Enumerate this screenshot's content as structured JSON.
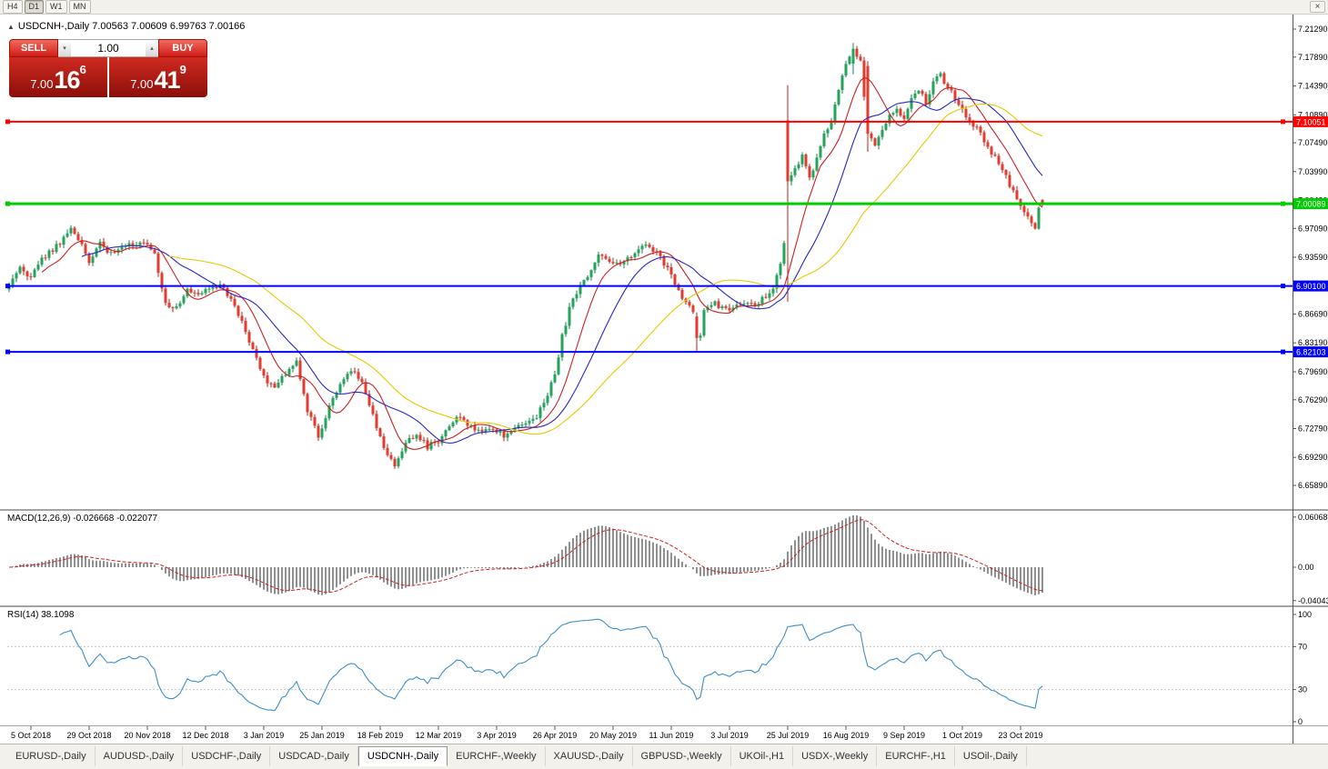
{
  "toolbar": {
    "periods": [
      "H4",
      "D1",
      "W1",
      "MN"
    ],
    "active_period": "D1",
    "close_label": "×"
  },
  "chart_header": {
    "collapse_icon": "▲",
    "title": "USDCNH-,Daily 7.00563 7.00609 6.99763 7.00166"
  },
  "one_click": {
    "sell_label": "SELL",
    "buy_label": "BUY",
    "volume": "1.00",
    "spin_down": "▾",
    "spin_up": "▴",
    "bid": {
      "prefix": "7.00",
      "main": "16",
      "sup": "6"
    },
    "ask": {
      "prefix": "7.00",
      "main": "41",
      "sup": "9"
    }
  },
  "indicators": {
    "macd_label": "MACD(12,26,9) -0.026668 -0.022077",
    "rsi_label": "RSI(14) 38.1098"
  },
  "price_axis_ticks": [
    "7.21290",
    "7.17890",
    "7.14390",
    "7.10890",
    "7.07490",
    "7.03990",
    "7.00490",
    "6.97090",
    "6.93590",
    "6.90090",
    "6.86690",
    "6.83190",
    "6.79690",
    "6.76290",
    "6.72790",
    "6.69290",
    "6.65890"
  ],
  "macd_axis": [
    {
      "v": 0.06068,
      "t": "0.06068"
    },
    {
      "v": 0,
      "t": "0.00"
    },
    {
      "v": -0.04043,
      "t": "-0.04043"
    }
  ],
  "rsi_axis": [
    100,
    70,
    30,
    0
  ],
  "hlines": [
    {
      "price": 7.10051,
      "label": "7.10051",
      "color": "#ff0000",
      "width": 2
    },
    {
      "price": 7.00089,
      "label": "7.00089",
      "color": "#00cc00",
      "width": 3
    },
    {
      "price": 6.901,
      "label": "6.90100",
      "color": "#0000ff",
      "width": 2
    },
    {
      "price": 6.82103,
      "label": "6.82103",
      "color": "#0000ff",
      "width": 2
    }
  ],
  "tabs": [
    "EURUSD-,Daily",
    "AUDUSD-,Daily",
    "USDCHF-,Daily",
    "USDCAD-,Daily",
    "USDCNH-,Daily",
    "EURCHF-,Weekly",
    "XAUUSD-,Daily",
    "GBPUSD-,Weekly",
    "UKOil-,H1",
    "USDX-,Weekly",
    "EURCHF-,H1",
    "USOil-,Daily"
  ],
  "active_tab_index": 4,
  "chart_data": {
    "type": "candlestick",
    "symbol": "USDCNH-",
    "timeframe": "Daily",
    "ohlc_display": {
      "open": "7.00563",
      "high": "7.00609",
      "low": "6.99763",
      "close": "7.00166"
    },
    "bid": "7.00166",
    "ask": "7.00419",
    "price_range": {
      "max": 7.2306,
      "min": 6.6302
    },
    "bar_count": 285,
    "date_labels": [
      "5 Oct 2018",
      "29 Oct 2018",
      "20 Nov 2018",
      "12 Dec 2018",
      "3 Jan 2019",
      "25 Jan 2019",
      "18 Feb 2019",
      "12 Mar 2019",
      "3 Apr 2019",
      "26 Apr 2019",
      "20 May 2019",
      "11 Jun 2019",
      "3 Jul 2019",
      "25 Jul 2019",
      "16 Aug 2019",
      "9 Sep 2019",
      "1 Oct 2019",
      "23 Oct 2019"
    ],
    "first_label_bar": 6,
    "label_step": 16,
    "price_anchors": [
      [
        0,
        6.9
      ],
      [
        3,
        6.922
      ],
      [
        6,
        6.912
      ],
      [
        9,
        6.934
      ],
      [
        12,
        6.946
      ],
      [
        15,
        6.958
      ],
      [
        17,
        6.974
      ],
      [
        19,
        6.96
      ],
      [
        22,
        6.931
      ],
      [
        25,
        6.952
      ],
      [
        28,
        6.941
      ],
      [
        31,
        6.948
      ],
      [
        34,
        6.952
      ],
      [
        37,
        6.955
      ],
      [
        40,
        6.938
      ],
      [
        43,
        6.88
      ],
      [
        46,
        6.873
      ],
      [
        49,
        6.898
      ],
      [
        52,
        6.893
      ],
      [
        55,
        6.899
      ],
      [
        58,
        6.903
      ],
      [
        61,
        6.884
      ],
      [
        64,
        6.858
      ],
      [
        67,
        6.822
      ],
      [
        70,
        6.789
      ],
      [
        73,
        6.779
      ],
      [
        76,
        6.793
      ],
      [
        79,
        6.808
      ],
      [
        82,
        6.749
      ],
      [
        85,
        6.719
      ],
      [
        88,
        6.753
      ],
      [
        91,
        6.779
      ],
      [
        94,
        6.799
      ],
      [
        97,
        6.786
      ],
      [
        100,
        6.746
      ],
      [
        103,
        6.701
      ],
      [
        106,
        6.683
      ],
      [
        109,
        6.711
      ],
      [
        112,
        6.723
      ],
      [
        115,
        6.706
      ],
      [
        118,
        6.713
      ],
      [
        121,
        6.731
      ],
      [
        124,
        6.743
      ],
      [
        127,
        6.729
      ],
      [
        130,
        6.723
      ],
      [
        133,
        6.729
      ],
      [
        136,
        6.719
      ],
      [
        139,
        6.725
      ],
      [
        142,
        6.737
      ],
      [
        145,
        6.743
      ],
      [
        148,
        6.766
      ],
      [
        150,
        6.796
      ],
      [
        152,
        6.839
      ],
      [
        154,
        6.873
      ],
      [
        156,
        6.893
      ],
      [
        158,
        6.906
      ],
      [
        160,
        6.921
      ],
      [
        162,
        6.939
      ],
      [
        165,
        6.931
      ],
      [
        168,
        6.927
      ],
      [
        171,
        6.937
      ],
      [
        174,
        6.951
      ],
      [
        176,
        6.947
      ],
      [
        179,
        6.935
      ],
      [
        182,
        6.916
      ],
      [
        185,
        6.886
      ],
      [
        188,
        6.871
      ],
      [
        190,
        6.843
      ],
      [
        191,
        6.873
      ],
      [
        194,
        6.879
      ],
      [
        198,
        6.873
      ],
      [
        202,
        6.877
      ],
      [
        206,
        6.881
      ],
      [
        210,
        6.896
      ],
      [
        212,
        6.926
      ],
      [
        213,
        6.956
      ],
      [
        214,
        7.028
      ],
      [
        216,
        7.042
      ],
      [
        218,
        7.058
      ],
      [
        220,
        7.033
      ],
      [
        222,
        7.056
      ],
      [
        224,
        7.086
      ],
      [
        226,
        7.103
      ],
      [
        228,
        7.139
      ],
      [
        230,
        7.172
      ],
      [
        232,
        7.189
      ],
      [
        234,
        7.176
      ],
      [
        236,
        7.086
      ],
      [
        238,
        7.073
      ],
      [
        240,
        7.089
      ],
      [
        242,
        7.106
      ],
      [
        244,
        7.116
      ],
      [
        246,
        7.106
      ],
      [
        248,
        7.129
      ],
      [
        250,
        7.141
      ],
      [
        252,
        7.123
      ],
      [
        254,
        7.146
      ],
      [
        256,
        7.159
      ],
      [
        258,
        7.141
      ],
      [
        260,
        7.129
      ],
      [
        262,
        7.119
      ],
      [
        264,
        7.099
      ],
      [
        266,
        7.091
      ],
      [
        268,
        7.079
      ],
      [
        270,
        7.063
      ],
      [
        272,
        7.049
      ],
      [
        274,
        7.033
      ],
      [
        276,
        7.016
      ],
      [
        278,
        6.999
      ],
      [
        280,
        6.986
      ],
      [
        282,
        6.969
      ],
      [
        283,
        6.993
      ],
      [
        284,
        7.002
      ]
    ],
    "special_candles": [
      {
        "index": 189,
        "open": 6.864,
        "high": 6.869,
        "low": 6.821,
        "close": 6.838
      },
      {
        "index": 214,
        "open": 7.102,
        "high": 7.145,
        "low": 6.882,
        "close": 7.028
      },
      {
        "index": 232,
        "open": 7.171,
        "high": 7.196,
        "low": 7.158,
        "close": 7.189
      },
      {
        "index": 236,
        "open": 7.168,
        "high": 7.174,
        "low": 7.064,
        "close": 7.086
      },
      {
        "index": 284,
        "open": 7.00563,
        "high": 7.00609,
        "low": 6.99763,
        "close": 7.00166
      }
    ],
    "ma_lines": [
      {
        "period": 10,
        "color": "#cc2020"
      },
      {
        "period": 21,
        "color": "#2828c8"
      },
      {
        "period": 45,
        "color": "#e6ca00"
      }
    ],
    "colors": {
      "up": "#24a35c",
      "up_wick": "#158448",
      "down": "#e23b30",
      "down_wick": "#c01f16",
      "macd_hist": "#909090",
      "macd_signal": "#d02020",
      "rsi_line": "#3e8fcc"
    },
    "macd": {
      "fast": 12,
      "slow": 26,
      "signal": 9,
      "current_macd": -0.026668,
      "current_signal": -0.022077
    },
    "rsi": {
      "period": 14,
      "current": 38.1098,
      "levels": [
        70,
        30
      ]
    }
  }
}
